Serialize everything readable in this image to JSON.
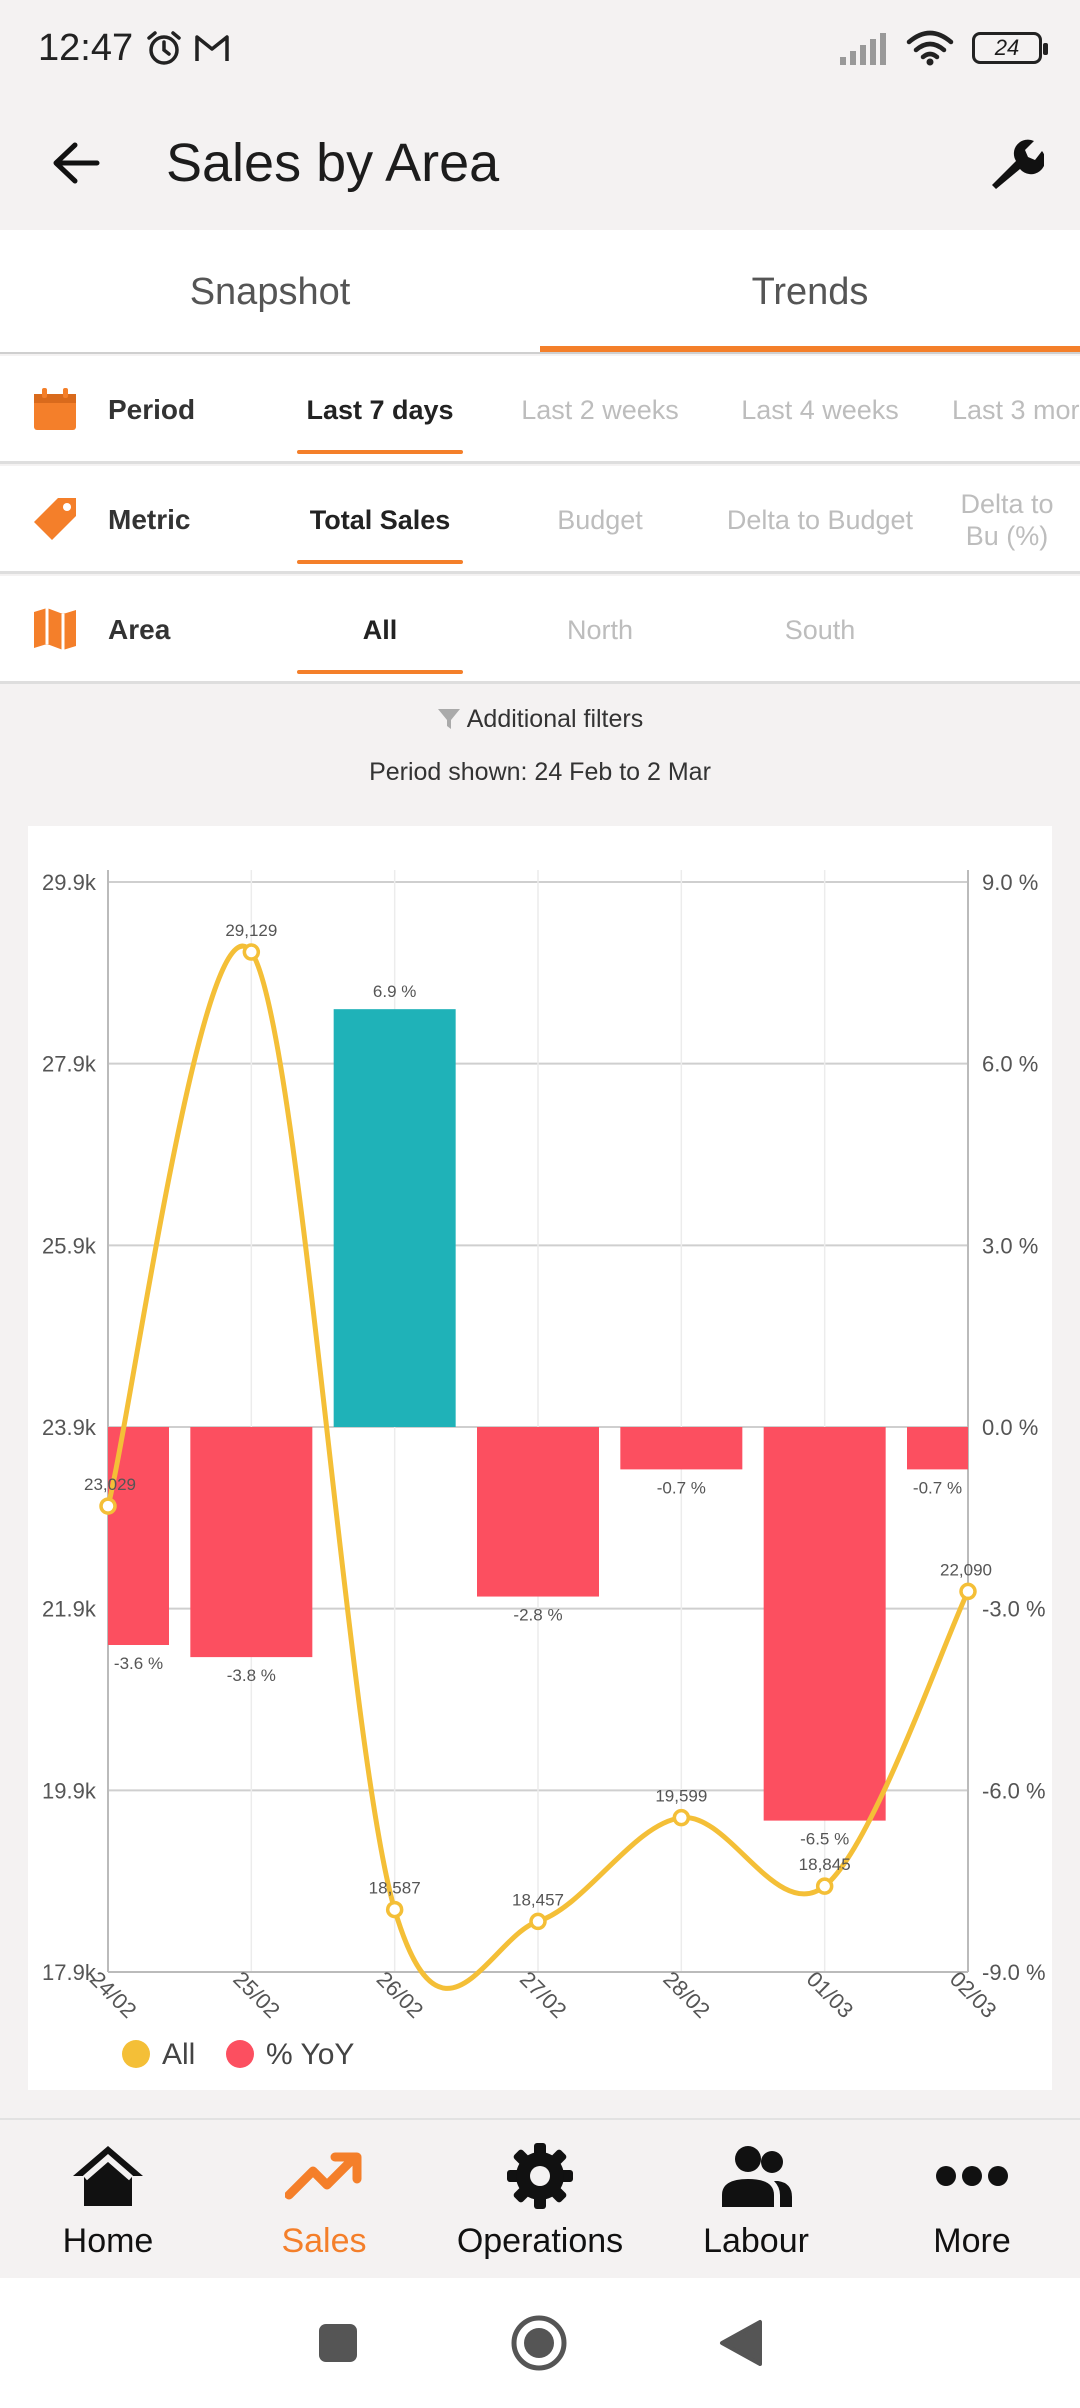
{
  "status": {
    "time": "12:47",
    "battery": "24"
  },
  "app": {
    "title": "Sales by Area"
  },
  "tabs": [
    {
      "label": "Snapshot",
      "active": false
    },
    {
      "label": "Trends",
      "active": true
    }
  ],
  "filters": {
    "period": {
      "label": "Period",
      "options": [
        "Last 7 days",
        "Last 2 weeks",
        "Last 4 weeks",
        "Last 3 mor"
      ],
      "selected": 0
    },
    "metric": {
      "label": "Metric",
      "options": [
        "Total Sales",
        "Budget",
        "Delta to Budget",
        "Delta to Bu (%)"
      ],
      "selected": 0
    },
    "area": {
      "label": "Area",
      "options": [
        "All",
        "North",
        "South"
      ],
      "selected": 0
    }
  },
  "additional_filters": "Additional filters",
  "period_shown": "Period shown: 24 Feb to 2 Mar",
  "chart_data": {
    "type": "bar",
    "categories": [
      "24/02",
      "25/02",
      "26/02",
      "27/02",
      "28/02",
      "01/03",
      "02/03"
    ],
    "left_axis": {
      "ticks": [
        "17.9k",
        "19.9k",
        "21.9k",
        "23.9k",
        "25.9k",
        "27.9k",
        "29.9k"
      ],
      "min": 17900,
      "max": 29900
    },
    "right_axis": {
      "ticks": [
        "-9.0 %",
        "-6.0 %",
        "-3.0 %",
        "0.0 %",
        "3.0 %",
        "6.0 %",
        "9.0 %"
      ],
      "min": -9.0,
      "max": 9.0
    },
    "series": [
      {
        "name": "All",
        "type": "line",
        "color": "#f4bf37",
        "values": [
          23029,
          29129,
          18587,
          18457,
          19599,
          18845,
          22090
        ],
        "labels": [
          "23,029",
          "29,129",
          "18,587",
          "18,457",
          "19,599",
          "18,845",
          "22,090"
        ]
      },
      {
        "name": "% YoY",
        "type": "bar",
        "color_negative": "#fc4f60",
        "color_positive": "#1fb2b8",
        "values": [
          -3.6,
          -3.8,
          6.9,
          -2.8,
          -0.7,
          -6.5,
          -0.7
        ],
        "labels": [
          "-3.6 %",
          "-3.8 %",
          "6.9 %",
          "-2.8 %",
          "-0.7 %",
          "-6.5 %",
          "-0.7 %"
        ]
      }
    ],
    "grid": true,
    "legend": "bottom-left"
  },
  "nav": [
    {
      "label": "Home",
      "icon": "home-icon",
      "active": false
    },
    {
      "label": "Sales",
      "icon": "trending-up-icon",
      "active": true
    },
    {
      "label": "Operations",
      "icon": "gear-icon",
      "active": false
    },
    {
      "label": "Labour",
      "icon": "people-icon",
      "active": false
    },
    {
      "label": "More",
      "icon": "more-dots-icon",
      "active": false
    }
  ],
  "colors": {
    "accent": "#f47f2a"
  }
}
